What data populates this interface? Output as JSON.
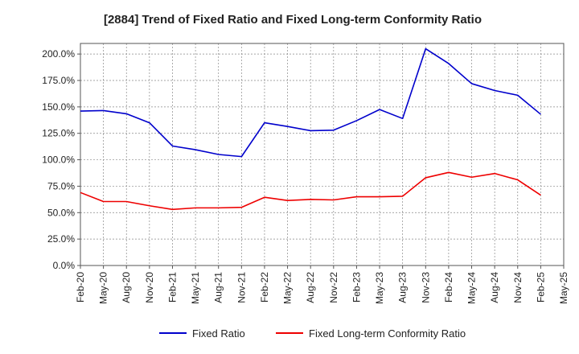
{
  "chart_data": {
    "type": "line",
    "title": "[2884]  Trend of Fixed Ratio and Fixed Long-term Conformity Ratio",
    "xlabel": "",
    "ylabel": "",
    "categories": [
      "Feb-20",
      "May-20",
      "Aug-20",
      "Nov-20",
      "Feb-21",
      "May-21",
      "Aug-21",
      "Nov-21",
      "Feb-22",
      "May-22",
      "Aug-22",
      "Nov-22",
      "Feb-23",
      "May-23",
      "Aug-23",
      "Nov-23",
      "Feb-24",
      "May-24",
      "Aug-24",
      "Nov-24",
      "Feb-25",
      "May-25"
    ],
    "yticks": [
      "0.0%",
      "25.0%",
      "50.0%",
      "75.0%",
      "100.0%",
      "125.0%",
      "150.0%",
      "175.0%",
      "200.0%"
    ],
    "ylim": [
      0,
      210
    ],
    "grid": true,
    "legend_position": "bottom-center",
    "series": [
      {
        "name": "Fixed Ratio",
        "color": "#0000cc",
        "values": [
          146.0,
          146.5,
          143.5,
          135.0,
          113.0,
          109.5,
          105.0,
          103.0,
          135.0,
          131.5,
          127.5,
          128.0,
          137.0,
          147.5,
          139.0,
          205.0,
          191.0,
          172.0,
          165.5,
          161.0,
          143.0,
          null
        ]
      },
      {
        "name": "Fixed Long-term Conformity Ratio",
        "color": "#ee0000",
        "values": [
          69.0,
          60.5,
          60.5,
          56.5,
          53.0,
          54.5,
          54.5,
          55.0,
          64.5,
          61.5,
          62.5,
          62.0,
          65.0,
          65.0,
          65.5,
          83.0,
          88.0,
          83.5,
          87.0,
          81.0,
          66.5,
          null
        ]
      }
    ]
  }
}
